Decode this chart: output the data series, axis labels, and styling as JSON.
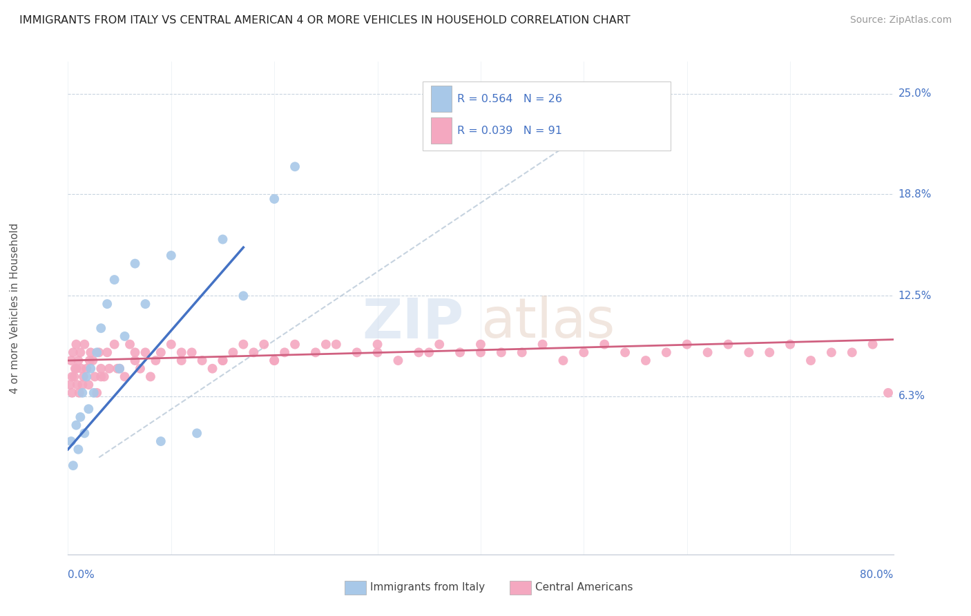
{
  "title": "IMMIGRANTS FROM ITALY VS CENTRAL AMERICAN 4 OR MORE VEHICLES IN HOUSEHOLD CORRELATION CHART",
  "source": "Source: ZipAtlas.com",
  "xmin": 0.0,
  "xmax": 80.0,
  "ymin": -3.5,
  "ymax": 27.0,
  "ylabel_ticks": [
    6.3,
    12.5,
    18.8,
    25.0
  ],
  "ylabel_tick_labels": [
    "6.3%",
    "12.5%",
    "18.8%",
    "25.0%"
  ],
  "legend_italy": "Immigrants from Italy",
  "legend_central": "Central Americans",
  "R_italy": 0.564,
  "N_italy": 26,
  "R_central": 0.039,
  "N_central": 91,
  "color_italy": "#a8c8e8",
  "color_central": "#f4a8c0",
  "color_italy_line": "#4472c4",
  "color_central_line": "#d06080",
  "color_diag_line": "#b8c8d8",
  "color_grid": "#c8d4e0",
  "color_axis_label": "#4472c4",
  "color_ylabel": "#555555",
  "italy_x": [
    0.3,
    0.5,
    0.8,
    1.0,
    1.2,
    1.4,
    1.6,
    1.8,
    2.0,
    2.2,
    2.5,
    2.8,
    3.2,
    3.8,
    4.5,
    5.0,
    5.5,
    6.5,
    7.5,
    9.0,
    10.0,
    12.5,
    15.0,
    17.0,
    20.0,
    22.0
  ],
  "italy_y": [
    3.5,
    2.0,
    4.5,
    3.0,
    5.0,
    6.5,
    4.0,
    7.5,
    5.5,
    8.0,
    6.5,
    9.0,
    10.5,
    12.0,
    13.5,
    8.0,
    10.0,
    14.5,
    12.0,
    3.5,
    15.0,
    4.0,
    16.0,
    12.5,
    18.5,
    20.5
  ],
  "central_x": [
    0.2,
    0.3,
    0.4,
    0.5,
    0.6,
    0.7,
    0.8,
    0.9,
    1.0,
    1.1,
    1.2,
    1.3,
    1.5,
    1.6,
    1.8,
    2.0,
    2.2,
    2.4,
    2.6,
    2.8,
    3.0,
    3.2,
    3.5,
    3.8,
    4.0,
    4.5,
    5.0,
    5.5,
    6.0,
    6.5,
    7.0,
    7.5,
    8.0,
    9.0,
    10.0,
    11.0,
    12.0,
    13.0,
    14.0,
    15.0,
    16.0,
    17.0,
    18.0,
    19.0,
    20.0,
    21.0,
    22.0,
    24.0,
    26.0,
    28.0,
    30.0,
    32.0,
    34.0,
    36.0,
    38.0,
    40.0,
    42.0,
    44.0,
    46.0,
    48.0,
    50.0,
    52.0,
    54.0,
    56.0,
    58.0,
    60.0,
    62.0,
    64.0,
    66.0,
    68.0,
    70.0,
    72.0,
    74.0,
    76.0,
    78.0,
    79.5,
    0.4,
    0.8,
    1.4,
    2.1,
    3.2,
    4.8,
    6.5,
    8.5,
    11.0,
    15.0,
    20.0,
    25.0,
    30.0,
    35.0,
    40.0
  ],
  "central_y": [
    7.0,
    8.5,
    6.5,
    9.0,
    7.5,
    8.0,
    9.5,
    7.0,
    8.5,
    6.5,
    9.0,
    8.0,
    7.5,
    9.5,
    8.0,
    7.0,
    9.0,
    8.5,
    7.5,
    6.5,
    9.0,
    8.0,
    7.5,
    9.0,
    8.0,
    9.5,
    8.0,
    7.5,
    9.5,
    8.5,
    8.0,
    9.0,
    7.5,
    9.0,
    9.5,
    8.5,
    9.0,
    8.5,
    8.0,
    8.5,
    9.0,
    9.5,
    9.0,
    9.5,
    8.5,
    9.0,
    9.5,
    9.0,
    9.5,
    9.0,
    9.5,
    8.5,
    9.0,
    9.5,
    9.0,
    9.5,
    9.0,
    9.0,
    9.5,
    8.5,
    9.0,
    9.5,
    9.0,
    8.5,
    9.0,
    9.5,
    9.0,
    9.5,
    9.0,
    9.0,
    9.5,
    8.5,
    9.0,
    9.0,
    9.5,
    6.5,
    7.5,
    8.0,
    7.0,
    8.5,
    7.5,
    8.0,
    9.0,
    8.5,
    9.0,
    8.5,
    8.5,
    9.5,
    9.0,
    9.0,
    9.0
  ]
}
